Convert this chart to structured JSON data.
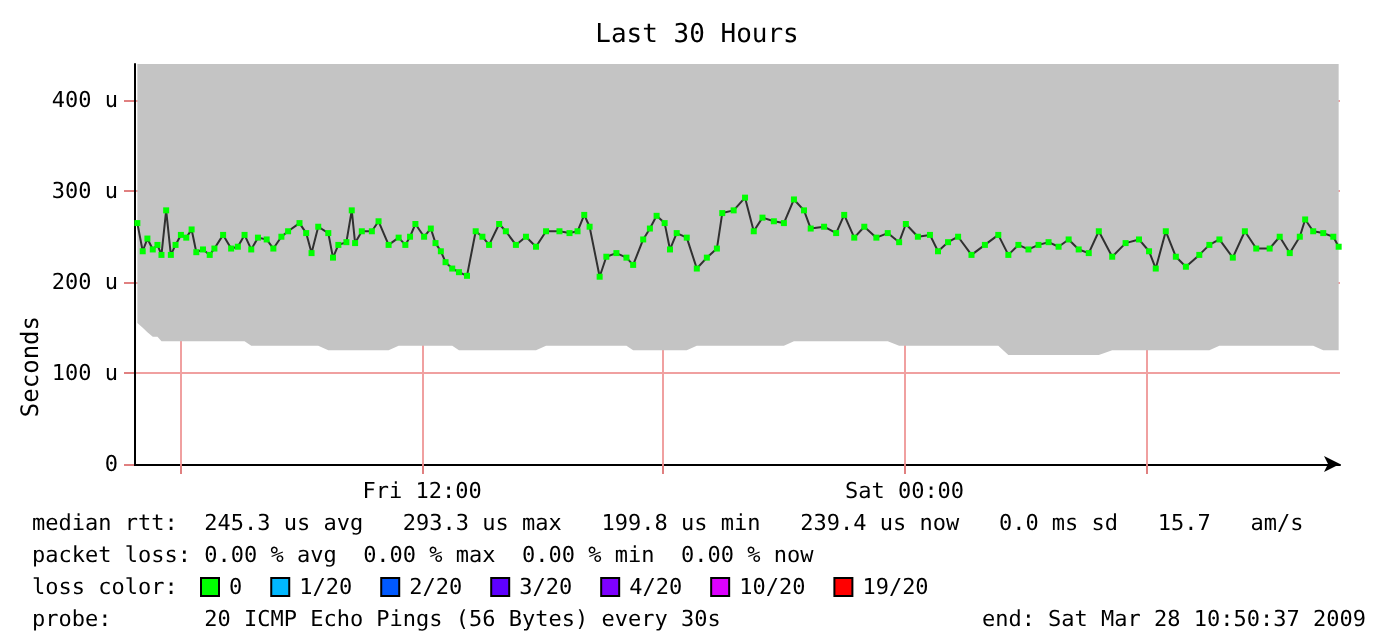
{
  "chart_data": {
    "type": "line",
    "title": "Last 30 Hours",
    "ylabel": "Seconds",
    "xlim": [
      "2009-03-27T04:50",
      "2009-03-28T10:50"
    ],
    "xticks": [
      {
        "value": "2009-03-27T06:00",
        "label": null
      },
      {
        "value": "2009-03-27T12:00",
        "label": "Fri 12:00"
      },
      {
        "value": "2009-03-27T18:00",
        "label": null
      },
      {
        "value": "2009-03-28T00:00",
        "label": "Sat 00:00"
      },
      {
        "value": "2009-03-28T06:00",
        "label": null
      }
    ],
    "ylim": [
      0,
      440
    ],
    "yticks": [
      {
        "value": 0,
        "label": "0"
      },
      {
        "value": 100,
        "label": "100 u"
      },
      {
        "value": 200,
        "label": "200 u"
      },
      {
        "value": 300,
        "label": "300 u"
      },
      {
        "value": 400,
        "label": "400 u"
      }
    ],
    "grid": true,
    "legend": "bottom left",
    "legend_title": "loss color:",
    "marker": "square",
    "line_style": "solid",
    "series": [
      {
        "name": "0",
        "color": "#00ff00",
        "x": [
          "2009-03-27T04:55",
          "2009-03-27T05:03",
          "2009-03-27T05:10",
          "2009-03-27T05:18",
          "2009-03-27T05:25",
          "2009-03-27T05:31",
          "2009-03-27T05:38",
          "2009-03-27T05:45",
          "2009-03-27T05:52",
          "2009-03-27T06:00",
          "2009-03-27T06:08",
          "2009-03-27T06:16",
          "2009-03-27T06:23",
          "2009-03-27T06:33",
          "2009-03-27T06:43",
          "2009-03-27T06:50",
          "2009-03-27T07:03",
          "2009-03-27T07:15",
          "2009-03-27T07:25",
          "2009-03-27T07:35",
          "2009-03-27T07:45",
          "2009-03-27T07:55",
          "2009-03-27T08:08",
          "2009-03-27T08:18",
          "2009-03-27T08:30",
          "2009-03-27T08:40",
          "2009-03-27T08:57",
          "2009-03-27T09:07",
          "2009-03-27T09:15",
          "2009-03-27T09:25",
          "2009-03-27T09:40",
          "2009-03-27T09:47",
          "2009-03-27T09:55",
          "2009-03-27T10:07",
          "2009-03-27T10:15",
          "2009-03-27T10:20",
          "2009-03-27T10:30",
          "2009-03-27T10:45",
          "2009-03-27T10:55",
          "2009-03-27T11:10",
          "2009-03-27T11:25",
          "2009-03-27T11:35",
          "2009-03-27T11:42",
          "2009-03-27T11:50",
          "2009-03-27T12:03",
          "2009-03-27T12:13",
          "2009-03-27T12:20",
          "2009-03-27T12:28",
          "2009-03-27T12:35",
          "2009-03-27T12:45",
          "2009-03-27T12:55",
          "2009-03-27T13:07",
          "2009-03-27T13:20",
          "2009-03-27T13:30",
          "2009-03-27T13:40",
          "2009-03-27T13:55",
          "2009-03-27T14:05",
          "2009-03-27T14:20",
          "2009-03-27T14:35",
          "2009-03-27T14:50",
          "2009-03-27T15:05",
          "2009-03-27T15:25",
          "2009-03-27T15:40",
          "2009-03-27T15:52",
          "2009-03-27T16:02",
          "2009-03-27T16:10",
          "2009-03-27T16:25",
          "2009-03-27T16:35",
          "2009-03-27T16:50",
          "2009-03-27T17:05",
          "2009-03-27T17:15",
          "2009-03-27T17:30",
          "2009-03-27T17:40",
          "2009-03-27T17:50",
          "2009-03-27T18:02",
          "2009-03-27T18:10",
          "2009-03-27T18:20",
          "2009-03-27T18:35",
          "2009-03-27T18:50",
          "2009-03-27T19:05",
          "2009-03-27T19:20",
          "2009-03-27T19:28",
          "2009-03-27T19:45",
          "2009-03-27T20:02",
          "2009-03-27T20:15",
          "2009-03-27T20:28",
          "2009-03-27T20:45",
          "2009-03-27T21:00",
          "2009-03-27T21:15",
          "2009-03-27T21:30",
          "2009-03-27T21:40",
          "2009-03-27T22:00",
          "2009-03-27T22:18",
          "2009-03-27T22:30",
          "2009-03-27T22:45",
          "2009-03-27T23:00",
          "2009-03-27T23:18",
          "2009-03-27T23:35",
          "2009-03-27T23:52",
          "2009-03-28T00:02",
          "2009-03-28T00:20",
          "2009-03-28T00:38",
          "2009-03-28T00:50",
          "2009-03-28T01:05",
          "2009-03-28T01:20",
          "2009-03-28T01:40",
          "2009-03-28T02:00",
          "2009-03-28T02:20",
          "2009-03-28T02:35",
          "2009-03-28T02:50",
          "2009-03-28T03:05",
          "2009-03-28T03:20",
          "2009-03-28T03:35",
          "2009-03-28T03:50",
          "2009-03-28T04:05",
          "2009-03-28T04:20",
          "2009-03-28T04:35",
          "2009-03-28T04:50",
          "2009-03-28T05:10",
          "2009-03-28T05:30",
          "2009-03-28T05:50",
          "2009-03-28T06:05",
          "2009-03-28T06:15",
          "2009-03-28T06:30",
          "2009-03-28T06:45",
          "2009-03-28T07:00",
          "2009-03-28T07:20",
          "2009-03-28T07:35",
          "2009-03-28T07:50",
          "2009-03-28T08:10",
          "2009-03-28T08:28",
          "2009-03-28T08:45",
          "2009-03-28T09:05",
          "2009-03-28T09:20",
          "2009-03-28T09:35",
          "2009-03-28T09:50",
          "2009-03-28T09:58",
          "2009-03-28T10:10",
          "2009-03-28T10:25",
          "2009-03-28T10:40",
          "2009-03-28T10:48"
        ],
        "values": [
          265,
          234,
          248,
          236,
          241,
          230,
          279,
          230,
          241,
          252,
          249,
          258,
          233,
          236,
          230,
          237,
          252,
          237,
          239,
          252,
          236,
          249,
          247,
          237,
          250,
          256,
          265,
          254,
          232,
          261,
          254,
          227,
          241,
          244,
          279,
          243,
          256,
          256,
          267,
          241,
          249,
          241,
          250,
          264,
          250,
          259,
          243,
          234,
          222,
          215,
          211,
          207,
          256,
          250,
          241,
          264,
          256,
          241,
          250,
          239,
          256,
          256,
          254,
          256,
          274,
          261,
          206,
          228,
          232,
          227,
          219,
          247,
          259,
          273,
          265,
          236,
          254,
          249,
          215,
          227,
          237,
          276,
          279,
          293,
          256,
          271,
          267,
          265,
          291,
          279,
          259,
          261,
          254,
          274,
          249,
          261,
          249,
          254,
          244,
          264,
          250,
          252,
          234,
          244,
          250,
          230,
          241,
          252,
          230,
          241,
          236,
          241,
          244,
          239,
          247,
          236,
          232,
          256,
          228,
          243,
          247,
          234,
          215,
          256,
          228,
          217,
          230,
          241,
          247,
          227,
          256,
          237,
          237,
          250,
          232,
          250,
          269,
          256,
          254,
          250,
          239
        ],
        "lower": [
          155,
          150,
          145,
          140,
          140,
          135,
          135,
          135,
          135,
          135,
          135,
          135,
          135,
          135,
          135,
          135,
          135,
          135,
          135,
          135,
          130,
          130,
          130,
          130,
          130,
          130,
          130,
          130,
          130,
          130,
          125,
          125,
          125,
          125,
          125,
          125,
          125,
          125,
          125,
          125,
          130,
          130,
          130,
          130,
          130,
          130,
          130,
          130,
          130,
          130,
          125,
          125,
          125,
          125,
          125,
          125,
          125,
          125,
          125,
          125,
          130,
          130,
          130,
          130,
          130,
          130,
          130,
          130,
          130,
          130,
          125,
          125,
          125,
          125,
          125,
          125,
          125,
          125,
          130,
          130,
          130,
          130,
          130,
          130,
          130,
          130,
          130,
          130,
          135,
          135,
          135,
          135,
          135,
          135,
          135,
          135,
          135,
          135,
          130,
          130,
          130,
          130,
          130,
          130,
          130,
          130,
          130,
          130,
          120,
          120,
          120,
          120,
          120,
          120,
          120,
          120,
          120,
          120,
          125,
          125,
          125,
          125,
          125,
          125,
          125,
          125,
          125,
          125,
          130,
          130,
          130,
          130,
          130,
          130,
          130,
          130,
          130,
          130,
          125,
          125,
          125
        ],
        "upper": [
          440,
          440,
          440,
          440,
          440,
          440,
          440,
          440,
          440,
          440,
          440,
          440,
          440,
          440,
          440,
          440,
          440,
          440,
          440,
          440,
          440,
          440,
          440,
          440,
          440,
          440,
          440,
          440,
          440,
          440,
          440,
          440,
          440,
          440,
          440,
          440,
          440,
          440,
          440,
          440,
          440,
          440,
          440,
          440,
          440,
          440,
          440,
          440,
          440,
          440,
          440,
          440,
          440,
          440,
          440,
          440,
          440,
          440,
          440,
          440,
          440,
          440,
          440,
          440,
          440,
          440,
          440,
          440,
          440,
          440,
          440,
          440,
          440,
          440,
          440,
          440,
          440,
          440,
          440,
          440,
          440,
          440,
          440,
          440,
          440,
          440,
          440,
          440,
          440,
          440,
          440,
          440,
          440,
          440,
          440,
          440,
          440,
          440,
          440,
          440,
          440,
          440,
          440,
          440,
          440,
          440,
          440,
          440,
          440,
          440,
          440,
          440,
          440,
          440,
          440,
          440,
          440,
          440,
          440,
          440,
          440,
          440,
          440,
          440,
          440,
          440,
          440,
          440,
          440,
          440,
          440,
          440,
          440,
          440,
          440,
          440,
          440,
          440,
          440,
          440,
          440
        ]
      },
      {
        "name": "1/20",
        "color": "#00b8ff"
      },
      {
        "name": "2/20",
        "color": "#0059ff"
      },
      {
        "name": "3/20",
        "color": "#5e00ff"
      },
      {
        "name": "4/20",
        "color": "#7e00ff"
      },
      {
        "name": "10/20",
        "color": "#dd00ff"
      },
      {
        "name": "19/20",
        "color": "#ff0000"
      }
    ],
    "annotations": [
      "median rtt:  245.3 us avg   293.3 us max   199.8 us min   239.4 us now   0.0 ms sd   15.7   am/s",
      "packet loss: 0.00 % avg  0.00 % max  0.00 % min  0.00 % now",
      "probe:       20 ICMP Echo Pings (56 Bytes) every 30s",
      "end: Sat Mar 28 10:50:37 2009"
    ]
  }
}
